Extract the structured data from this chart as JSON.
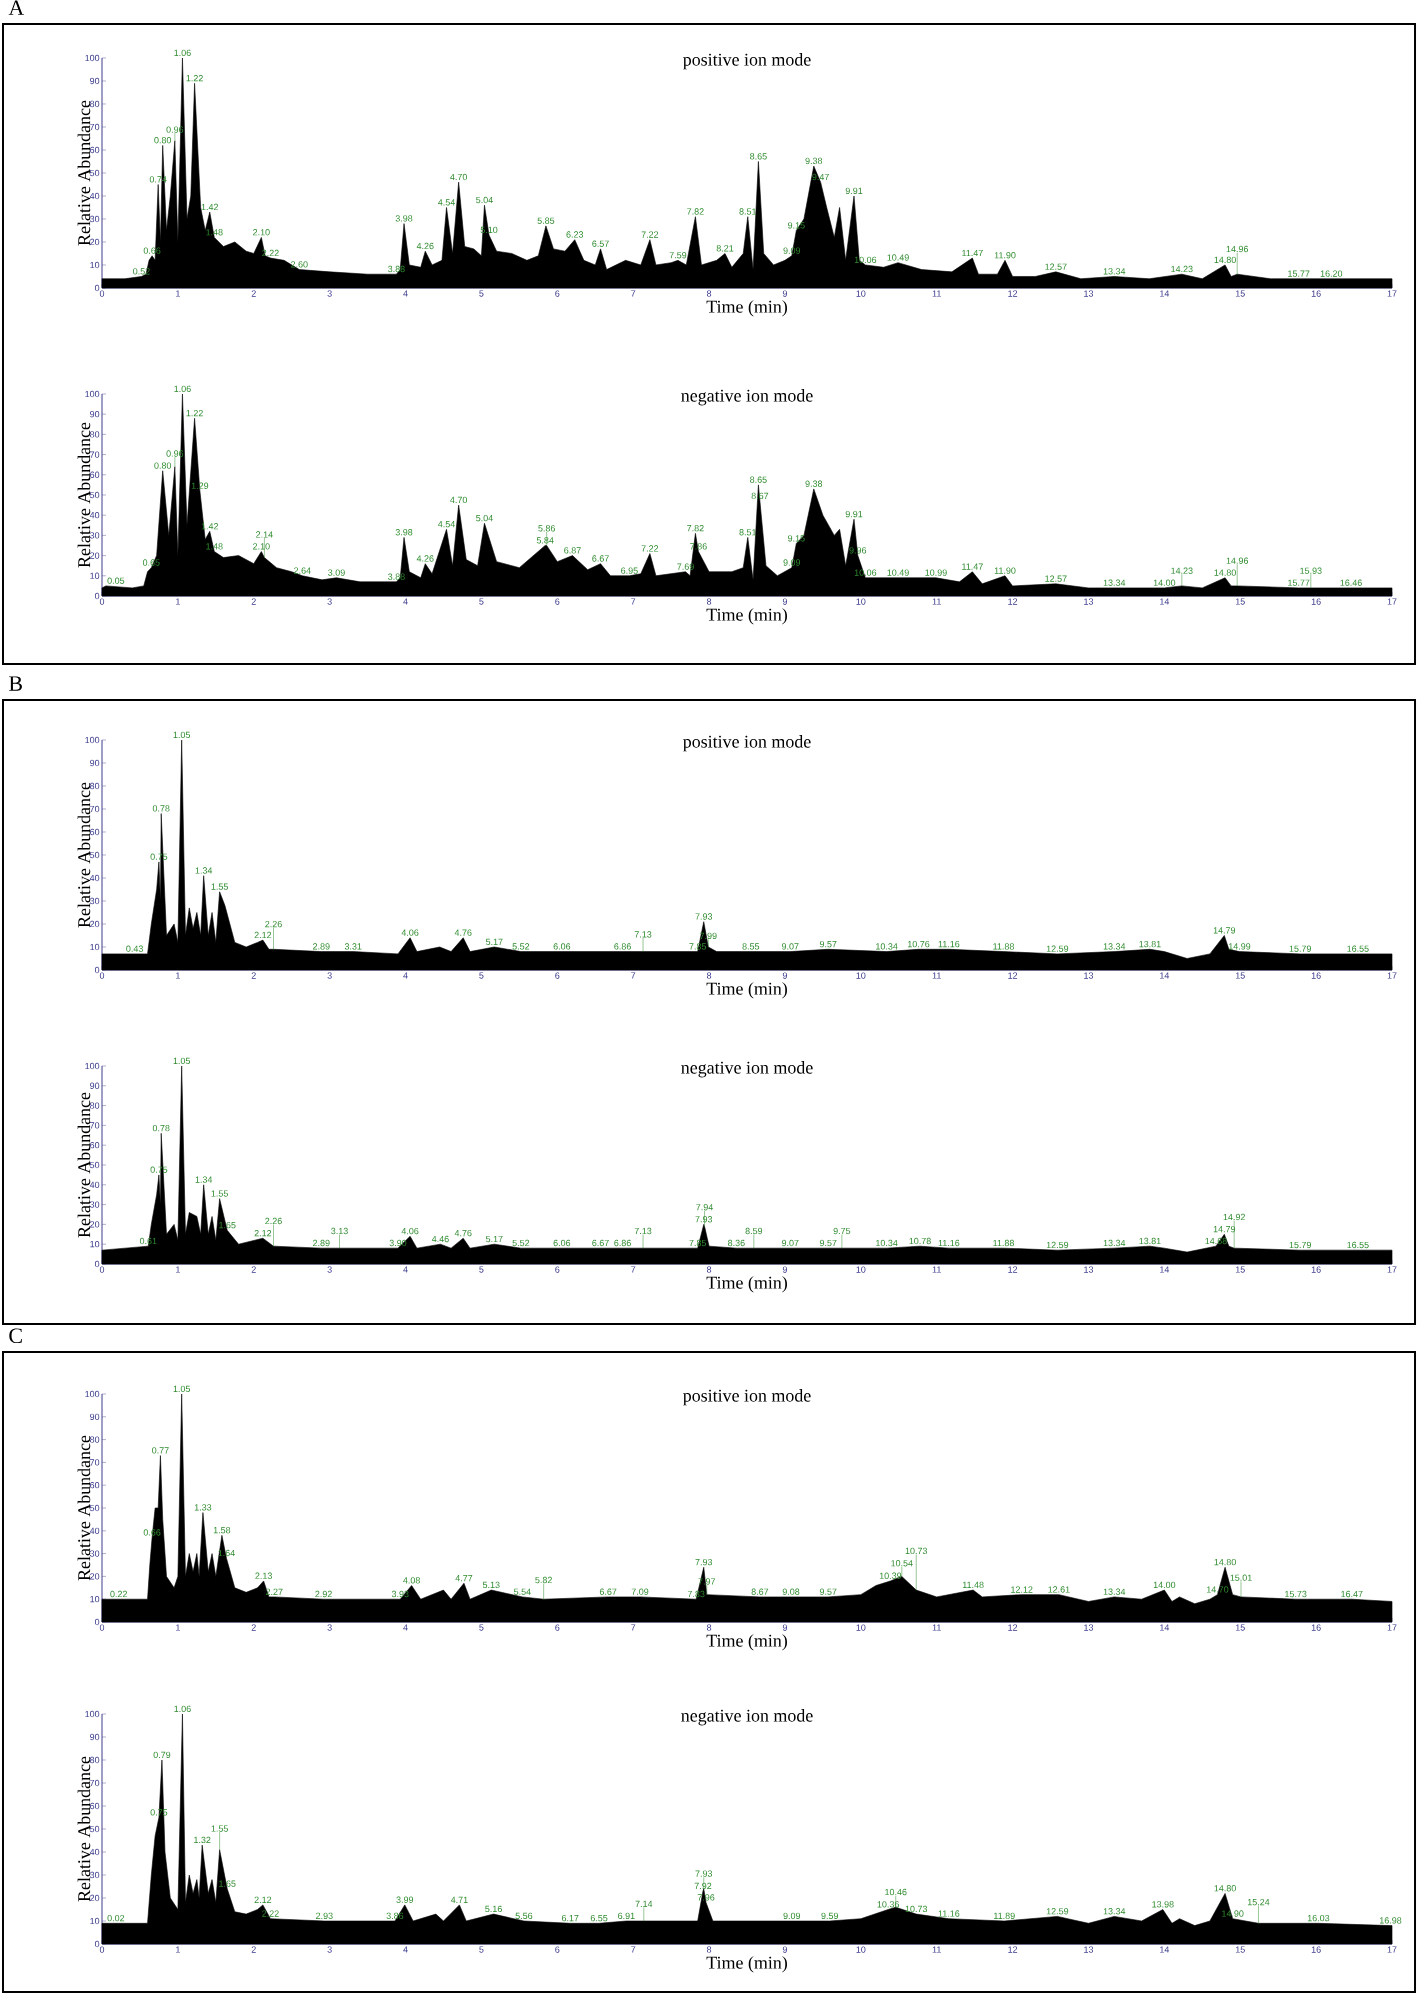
{
  "chart_data": [
    {
      "type": "area",
      "title": "positive ion mode",
      "xlabel": "Time (min)",
      "ylabel": "Relative Abundance",
      "color": "#000000",
      "xlim": [
        0,
        17
      ],
      "ylim": [
        0,
        100
      ],
      "xticks": [
        0,
        1,
        2,
        3,
        4,
        5,
        6,
        7,
        8,
        9,
        10,
        11,
        12,
        13,
        14,
        15,
        16,
        17
      ],
      "yticks": [
        0,
        10,
        20,
        30,
        40,
        50,
        60,
        70,
        80,
        90,
        100
      ],
      "x": [
        0,
        0.3,
        0.52,
        0.58,
        0.62,
        0.66,
        0.7,
        0.74,
        0.77,
        0.8,
        0.85,
        0.9,
        0.96,
        1.0,
        1.06,
        1.12,
        1.17,
        1.22,
        1.3,
        1.36,
        1.42,
        1.48,
        1.6,
        1.75,
        1.9,
        2.0,
        2.1,
        2.15,
        2.22,
        2.4,
        2.6,
        3.0,
        3.5,
        3.88,
        3.93,
        3.98,
        4.05,
        4.2,
        4.26,
        4.35,
        4.48,
        4.54,
        4.62,
        4.7,
        4.78,
        4.9,
        5.0,
        5.04,
        5.1,
        5.2,
        5.4,
        5.6,
        5.75,
        5.85,
        5.95,
        6.1,
        6.23,
        6.35,
        6.5,
        6.57,
        6.65,
        6.9,
        7.1,
        7.22,
        7.3,
        7.5,
        7.59,
        7.7,
        7.82,
        7.9,
        8.1,
        8.21,
        8.3,
        8.45,
        8.51,
        8.58,
        8.65,
        8.72,
        8.85,
        9.0,
        9.09,
        9.15,
        9.25,
        9.38,
        9.47,
        9.55,
        9.65,
        9.72,
        9.8,
        9.91,
        9.98,
        10.06,
        10.3,
        10.49,
        10.8,
        11.2,
        11.47,
        11.55,
        11.8,
        11.9,
        12.0,
        12.3,
        12.57,
        12.9,
        13.34,
        13.8,
        14.23,
        14.5,
        14.8,
        14.88,
        14.96,
        15.4,
        15.77,
        16.2,
        16.6,
        17
      ],
      "values": [
        4,
        4,
        5,
        6,
        12,
        14,
        12,
        45,
        20,
        62,
        25,
        40,
        64,
        20,
        100,
        30,
        40,
        89,
        35,
        25,
        33,
        22,
        18,
        20,
        16,
        15,
        22,
        14,
        13,
        12,
        8,
        7,
        6,
        6,
        8,
        28,
        10,
        9,
        16,
        10,
        12,
        35,
        15,
        46,
        18,
        17,
        14,
        36,
        23,
        16,
        15,
        12,
        14,
        27,
        17,
        16,
        21,
        12,
        10,
        17,
        8,
        12,
        10,
        21,
        10,
        11,
        12,
        10,
        31,
        10,
        12,
        15,
        9,
        15,
        31,
        8,
        55,
        15,
        10,
        12,
        14,
        25,
        30,
        53,
        46,
        35,
        22,
        35,
        12,
        40,
        12,
        10,
        9,
        11,
        8,
        7,
        13,
        6,
        6,
        12,
        5,
        5,
        7,
        4,
        5,
        4,
        6,
        4,
        10,
        5,
        6,
        4,
        4,
        4,
        4,
        4
      ],
      "annotations": [
        "A",
        {
          "text": "0.52",
          "x": 0.52,
          "y": 5
        },
        {
          "text": "0.66",
          "x": 0.66,
          "y": 14
        },
        {
          "text": "0.74",
          "x": 0.74,
          "y": 45
        },
        {
          "text": "0.80",
          "x": 0.8,
          "y": 62
        },
        {
          "text": "0.96",
          "x": 0.96,
          "y": 64
        },
        {
          "text": "1.06",
          "x": 1.06,
          "y": 100
        },
        {
          "text": "1.22",
          "x": 1.22,
          "y": 89
        },
        {
          "text": "1.42",
          "x": 1.42,
          "y": 33
        },
        {
          "text": "1.48",
          "x": 1.48,
          "y": 22
        },
        {
          "text": "2.10",
          "x": 2.1,
          "y": 22
        },
        {
          "text": "2.22",
          "x": 2.22,
          "y": 13
        },
        {
          "text": "2.60",
          "x": 2.6,
          "y": 8
        },
        {
          "text": "3.88",
          "x": 3.88,
          "y": 6
        },
        {
          "text": "3.98",
          "x": 3.98,
          "y": 28
        },
        {
          "text": "4.26",
          "x": 4.26,
          "y": 16
        },
        {
          "text": "4.54",
          "x": 4.54,
          "y": 35
        },
        {
          "text": "4.70",
          "x": 4.7,
          "y": 46
        },
        {
          "text": "5.04",
          "x": 5.04,
          "y": 36
        },
        {
          "text": "5.10",
          "x": 5.1,
          "y": 23
        },
        {
          "text": "5.85",
          "x": 5.85,
          "y": 27
        },
        {
          "text": "6.23",
          "x": 6.23,
          "y": 21
        },
        {
          "text": "6.57",
          "x": 6.57,
          "y": 17
        },
        {
          "text": "7.22",
          "x": 7.22,
          "y": 21
        },
        {
          "text": "7.59",
          "x": 7.59,
          "y": 12
        },
        {
          "text": "7.82",
          "x": 7.82,
          "y": 31
        },
        {
          "text": "8.21",
          "x": 8.21,
          "y": 15
        },
        {
          "text": "8.51",
          "x": 8.51,
          "y": 31
        },
        {
          "text": "8.65",
          "x": 8.65,
          "y": 55
        },
        {
          "text": "9.09",
          "x": 9.09,
          "y": 14
        },
        {
          "text": "9.15",
          "x": 9.15,
          "y": 25
        },
        {
          "text": "9.38",
          "x": 9.38,
          "y": 53
        },
        {
          "text": "9.47",
          "x": 9.47,
          "y": 46
        },
        {
          "text": "9.91",
          "x": 9.91,
          "y": 40
        },
        {
          "text": "10.06",
          "x": 10.06,
          "y": 10
        },
        {
          "text": "10.49",
          "x": 10.49,
          "y": 11
        },
        {
          "text": "11.47",
          "x": 11.47,
          "y": 13
        },
        {
          "text": "11.90",
          "x": 11.9,
          "y": 12
        },
        {
          "text": "12.57",
          "x": 12.57,
          "y": 7
        },
        {
          "text": "13.34",
          "x": 13.34,
          "y": 5
        },
        {
          "text": "14.23",
          "x": 14.23,
          "y": 6
        },
        {
          "text": "14.80",
          "x": 14.8,
          "y": 10
        },
        {
          "text": "14.96",
          "x": 14.96,
          "y": 6
        },
        {
          "text": "15.77",
          "x": 15.77,
          "y": 4
        },
        {
          "text": "16.20",
          "x": 16.2,
          "y": 4
        }
      ]
    },
    {
      "type": "area",
      "title": "negative ion mode",
      "xlabel": "Time (min)",
      "ylabel": "Relative Abundance",
      "color": "#000000",
      "xlim": [
        0,
        17
      ],
      "ylim": [
        0,
        100
      ],
      "xticks": [
        0,
        1,
        2,
        3,
        4,
        5,
        6,
        7,
        8,
        9,
        10,
        11,
        12,
        13,
        14,
        15,
        16,
        17
      ],
      "yticks": [
        0,
        10,
        20,
        30,
        40,
        50,
        60,
        70,
        80,
        90,
        100
      ],
      "x": [
        0,
        0.05,
        0.4,
        0.55,
        0.6,
        0.65,
        0.72,
        0.8,
        0.88,
        0.96,
        1.0,
        1.06,
        1.12,
        1.22,
        1.29,
        1.36,
        1.42,
        1.48,
        1.6,
        1.8,
        2.0,
        2.1,
        2.14,
        2.3,
        2.5,
        2.64,
        2.9,
        3.09,
        3.4,
        3.88,
        3.93,
        3.98,
        4.05,
        4.2,
        4.26,
        4.35,
        4.54,
        4.62,
        4.7,
        4.8,
        4.95,
        5.04,
        5.2,
        5.5,
        5.84,
        5.86,
        6.0,
        6.2,
        6.4,
        6.57,
        6.7,
        6.95,
        7.1,
        7.22,
        7.3,
        7.69,
        7.75,
        7.82,
        7.86,
        8.0,
        8.3,
        8.45,
        8.51,
        8.58,
        8.65,
        8.67,
        8.75,
        8.9,
        9.09,
        9.15,
        9.25,
        9.38,
        9.5,
        9.65,
        9.72,
        9.8,
        9.91,
        9.96,
        10.06,
        10.3,
        10.49,
        10.99,
        11.3,
        11.47,
        11.6,
        11.9,
        12.0,
        12.57,
        13.0,
        13.34,
        14.0,
        14.23,
        14.5,
        14.8,
        14.88,
        14.96,
        15.77,
        15.93,
        16.46,
        17
      ],
      "values": [
        4,
        5,
        4,
        5,
        12,
        14,
        20,
        62,
        30,
        64,
        20,
        100,
        35,
        88,
        52,
        28,
        32,
        22,
        19,
        20,
        16,
        22,
        19,
        14,
        12,
        10,
        8,
        9,
        7,
        7,
        9,
        29,
        12,
        9,
        16,
        11,
        33,
        15,
        45,
        18,
        15,
        36,
        17,
        14,
        25,
        25,
        17,
        20,
        13,
        16,
        10,
        10,
        11,
        21,
        10,
        12,
        10,
        31,
        22,
        12,
        12,
        14,
        29,
        8,
        55,
        47,
        15,
        10,
        14,
        26,
        30,
        53,
        40,
        30,
        33,
        15,
        38,
        20,
        9,
        9,
        9,
        9,
        7,
        12,
        6,
        10,
        5,
        6,
        4,
        4,
        4,
        5,
        4,
        9,
        5,
        5,
        4,
        4,
        4,
        4
      ],
      "annotations": [
        {
          "text": "0.05",
          "x": 0.05,
          "y": 5
        },
        {
          "text": "0.65",
          "x": 0.65,
          "y": 14
        },
        {
          "text": "0.80",
          "x": 0.8,
          "y": 62
        },
        {
          "text": "0.96",
          "x": 0.96,
          "y": 64
        },
        {
          "text": "1.06",
          "x": 1.06,
          "y": 100
        },
        {
          "text": "1.22",
          "x": 1.22,
          "y": 88
        },
        {
          "text": "1.29",
          "x": 1.29,
          "y": 52
        },
        {
          "text": "1.42",
          "x": 1.42,
          "y": 32
        },
        {
          "text": "1.48",
          "x": 1.48,
          "y": 22
        },
        {
          "text": "2.10",
          "x": 2.1,
          "y": 22
        },
        {
          "text": "2.14",
          "x": 2.14,
          "y": 19
        },
        {
          "text": "2.64",
          "x": 2.64,
          "y": 10
        },
        {
          "text": "3.09",
          "x": 3.09,
          "y": 9
        },
        {
          "text": "3.88",
          "x": 3.88,
          "y": 7
        },
        {
          "text": "3.98",
          "x": 3.98,
          "y": 29
        },
        {
          "text": "4.26",
          "x": 4.26,
          "y": 16
        },
        {
          "text": "4.54",
          "x": 4.54,
          "y": 33
        },
        {
          "text": "4.70",
          "x": 4.7,
          "y": 45
        },
        {
          "text": "5.04",
          "x": 5.04,
          "y": 36
        },
        {
          "text": "5.84",
          "x": 5.84,
          "y": 25
        },
        {
          "text": "5.86",
          "x": 5.86,
          "y": 25
        },
        {
          "text": "6.87",
          "x": 6.2,
          "y": 20
        },
        {
          "text": "6.67",
          "x": 6.57,
          "y": 16
        },
        {
          "text": "6.95",
          "x": 6.95,
          "y": 10
        },
        {
          "text": "7.22",
          "x": 7.22,
          "y": 21
        },
        {
          "text": "7.69",
          "x": 7.69,
          "y": 12
        },
        {
          "text": "7.82",
          "x": 7.82,
          "y": 31
        },
        {
          "text": "7.86",
          "x": 7.86,
          "y": 22
        },
        {
          "text": "8.51",
          "x": 8.51,
          "y": 29
        },
        {
          "text": "8.65",
          "x": 8.65,
          "y": 55
        },
        {
          "text": "8.67",
          "x": 8.67,
          "y": 47
        },
        {
          "text": "9.09",
          "x": 9.09,
          "y": 14
        },
        {
          "text": "9.15",
          "x": 9.15,
          "y": 26
        },
        {
          "text": "9.38",
          "x": 9.38,
          "y": 53
        },
        {
          "text": "9.91",
          "x": 9.91,
          "y": 38
        },
        {
          "text": "9.96",
          "x": 9.96,
          "y": 20
        },
        {
          "text": "10.06",
          "x": 10.06,
          "y": 9
        },
        {
          "text": "10.49",
          "x": 10.49,
          "y": 9
        },
        {
          "text": "10.99",
          "x": 10.99,
          "y": 9
        },
        {
          "text": "11.47",
          "x": 11.47,
          "y": 12
        },
        {
          "text": "11.90",
          "x": 11.9,
          "y": 10
        },
        {
          "text": "12.57",
          "x": 12.57,
          "y": 6
        },
        {
          "text": "13.34",
          "x": 13.34,
          "y": 4
        },
        {
          "text": "14.00",
          "x": 14.0,
          "y": 4
        },
        {
          "text": "14.23",
          "x": 14.23,
          "y": 5
        },
        {
          "text": "14.80",
          "x": 14.8,
          "y": 9
        },
        {
          "text": "14.96",
          "x": 14.96,
          "y": 5
        },
        {
          "text": "15.77",
          "x": 15.77,
          "y": 4
        },
        {
          "text": "15.93",
          "x": 15.93,
          "y": 4
        },
        {
          "text": "16.46",
          "x": 16.46,
          "y": 4
        }
      ]
    },
    {
      "type": "area",
      "title": "positive ion mode",
      "xlabel": "Time (min)",
      "ylabel": "Relative Abundance",
      "color": "#000000",
      "xlim": [
        0,
        17
      ],
      "ylim": [
        0,
        100
      ],
      "xticks": [
        0,
        1,
        2,
        3,
        4,
        5,
        6,
        7,
        8,
        9,
        10,
        11,
        12,
        13,
        14,
        15,
        16,
        17
      ],
      "yticks": [
        0,
        10,
        20,
        30,
        40,
        50,
        60,
        70,
        80,
        90,
        100
      ],
      "x": [
        0,
        0.43,
        0.6,
        0.65,
        0.72,
        0.75,
        0.77,
        0.78,
        0.85,
        0.95,
        1.0,
        1.05,
        1.1,
        1.15,
        1.2,
        1.25,
        1.3,
        1.34,
        1.4,
        1.45,
        1.5,
        1.55,
        1.62,
        1.75,
        1.9,
        2.05,
        2.12,
        2.2,
        2.26,
        2.89,
        3.31,
        3.9,
        4.06,
        4.15,
        4.45,
        4.6,
        4.76,
        4.85,
        5.17,
        5.52,
        6.06,
        6.86,
        7.13,
        7.85,
        7.93,
        7.99,
        8.1,
        8.55,
        9.07,
        9.57,
        10.34,
        10.76,
        11.16,
        11.88,
        12.59,
        13.34,
        13.81,
        14.0,
        14.3,
        14.6,
        14.79,
        14.85,
        14.99,
        15.79,
        16.55,
        17
      ],
      "values": [
        7,
        7,
        7,
        20,
        35,
        47,
        30,
        68,
        15,
        20,
        12,
        100,
        15,
        27,
        18,
        25,
        15,
        41,
        15,
        25,
        12,
        34,
        28,
        12,
        10,
        12,
        13,
        9,
        9,
        8,
        8,
        7,
        14,
        8,
        10,
        8,
        14,
        8,
        10,
        8,
        8,
        8,
        8,
        8,
        21,
        10,
        8,
        8,
        8,
        9,
        8,
        9,
        9,
        8,
        7,
        8,
        9,
        8,
        5,
        7,
        15,
        9,
        8,
        7,
        7,
        7
      ],
      "annotations": [
        "B",
        {
          "text": "0.43",
          "x": 0.43,
          "y": 7
        },
        {
          "text": "0.75",
          "x": 0.75,
          "y": 47
        },
        {
          "text": "0.78",
          "x": 0.78,
          "y": 68
        },
        {
          "text": "1.05",
          "x": 1.05,
          "y": 100
        },
        {
          "text": "1.34",
          "x": 1.34,
          "y": 41
        },
        {
          "text": "1.55",
          "x": 1.55,
          "y": 34
        },
        {
          "text": "2.12",
          "x": 2.12,
          "y": 13
        },
        {
          "text": "2.26",
          "x": 2.26,
          "y": 9
        },
        {
          "text": "2.89",
          "x": 2.89,
          "y": 8
        },
        {
          "text": "3.31",
          "x": 3.31,
          "y": 8
        },
        {
          "text": "4.06",
          "x": 4.06,
          "y": 14
        },
        {
          "text": "4.76",
          "x": 4.76,
          "y": 14
        },
        {
          "text": "5.17",
          "x": 5.17,
          "y": 10
        },
        {
          "text": "5.52",
          "x": 5.52,
          "y": 8
        },
        {
          "text": "6.06",
          "x": 6.06,
          "y": 8
        },
        {
          "text": "6.86",
          "x": 6.86,
          "y": 8
        },
        {
          "text": "7.13",
          "x": 7.13,
          "y": 8
        },
        {
          "text": "7.85",
          "x": 7.85,
          "y": 8
        },
        {
          "text": "7.93",
          "x": 7.93,
          "y": 21
        },
        {
          "text": "7.99",
          "x": 7.99,
          "y": 10
        },
        {
          "text": "8.55",
          "x": 8.55,
          "y": 8
        },
        {
          "text": "9.07",
          "x": 9.07,
          "y": 8
        },
        {
          "text": "9.57",
          "x": 9.57,
          "y": 9
        },
        {
          "text": "10.34",
          "x": 10.34,
          "y": 8
        },
        {
          "text": "10.76",
          "x": 10.76,
          "y": 9
        },
        {
          "text": "11.16",
          "x": 11.16,
          "y": 9
        },
        {
          "text": "11.88",
          "x": 11.88,
          "y": 8
        },
        {
          "text": "12.59",
          "x": 12.59,
          "y": 7
        },
        {
          "text": "13.34",
          "x": 13.34,
          "y": 8
        },
        {
          "text": "13.81",
          "x": 13.81,
          "y": 9
        },
        {
          "text": "14.79",
          "x": 14.79,
          "y": 15
        },
        {
          "text": "14.99",
          "x": 14.99,
          "y": 8
        },
        {
          "text": "15.79",
          "x": 15.79,
          "y": 7
        },
        {
          "text": "16.55",
          "x": 16.55,
          "y": 7
        }
      ]
    },
    {
      "type": "area",
      "title": "negative ion mode",
      "xlabel": "Time (min)",
      "ylabel": "Relative Abundance",
      "color": "#000000",
      "xlim": [
        0,
        17
      ],
      "ylim": [
        0,
        100
      ],
      "xticks": [
        0,
        1,
        2,
        3,
        4,
        5,
        6,
        7,
        8,
        9,
        10,
        11,
        12,
        13,
        14,
        15,
        16,
        17
      ],
      "yticks": [
        0,
        10,
        20,
        30,
        40,
        50,
        60,
        70,
        80,
        90,
        100
      ],
      "x": [
        0,
        0.61,
        0.65,
        0.72,
        0.75,
        0.77,
        0.78,
        0.85,
        0.95,
        1.0,
        1.05,
        1.1,
        1.15,
        1.25,
        1.3,
        1.34,
        1.4,
        1.45,
        1.5,
        1.55,
        1.65,
        1.8,
        2.12,
        2.26,
        2.89,
        3.13,
        3.9,
        4.06,
        4.15,
        4.46,
        4.6,
        4.76,
        4.85,
        5.17,
        5.52,
        6.06,
        6.57,
        6.86,
        7.13,
        7.85,
        7.93,
        7.94,
        8.0,
        8.36,
        8.59,
        9.07,
        9.57,
        9.75,
        10.34,
        10.78,
        11.16,
        11.88,
        12.59,
        13.34,
        13.81,
        14.0,
        14.3,
        14.68,
        14.79,
        14.85,
        14.92,
        15.79,
        16.55,
        17
      ],
      "values": [
        7,
        9,
        20,
        35,
        45,
        30,
        66,
        15,
        20,
        12,
        100,
        15,
        26,
        24,
        15,
        40,
        15,
        24,
        12,
        33,
        17,
        10,
        13,
        9,
        8,
        8,
        8,
        14,
        8,
        10,
        8,
        13,
        8,
        10,
        8,
        8,
        8,
        8,
        8,
        8,
        20,
        19,
        9,
        8,
        8,
        8,
        8,
        8,
        8,
        9,
        8,
        8,
        7,
        8,
        9,
        8,
        6,
        9,
        15,
        9,
        8,
        7,
        7,
        7
      ],
      "annotations": [
        {
          "text": "0.61",
          "x": 0.61,
          "y": 9
        },
        {
          "text": "0.75",
          "x": 0.75,
          "y": 45
        },
        {
          "text": "0.78",
          "x": 0.78,
          "y": 66
        },
        {
          "text": "1.05",
          "x": 1.05,
          "y": 100
        },
        {
          "text": "1.34",
          "x": 1.34,
          "y": 40
        },
        {
          "text": "1.55",
          "x": 1.55,
          "y": 33
        },
        {
          "text": "1.65",
          "x": 1.65,
          "y": 17
        },
        {
          "text": "2.12",
          "x": 2.12,
          "y": 13
        },
        {
          "text": "2.26",
          "x": 2.26,
          "y": 9
        },
        {
          "text": "2.89",
          "x": 2.89,
          "y": 8
        },
        {
          "text": "3.13",
          "x": 3.13,
          "y": 8
        },
        {
          "text": "3.90",
          "x": 3.9,
          "y": 8
        },
        {
          "text": "4.06",
          "x": 4.06,
          "y": 14
        },
        {
          "text": "4.46",
          "x": 4.46,
          "y": 10
        },
        {
          "text": "4.76",
          "x": 4.76,
          "y": 13
        },
        {
          "text": "5.17",
          "x": 5.17,
          "y": 10
        },
        {
          "text": "5.52",
          "x": 5.52,
          "y": 8
        },
        {
          "text": "6.06",
          "x": 6.06,
          "y": 8
        },
        {
          "text": "6.67",
          "x": 6.57,
          "y": 8
        },
        {
          "text": "6.86",
          "x": 6.86,
          "y": 8
        },
        {
          "text": "7.13",
          "x": 7.13,
          "y": 8
        },
        {
          "text": "7.85",
          "x": 7.85,
          "y": 8
        },
        {
          "text": "7.93",
          "x": 7.93,
          "y": 20
        },
        {
          "text": "7.94",
          "x": 7.94,
          "y": 19
        },
        {
          "text": "8.36",
          "x": 8.36,
          "y": 8
        },
        {
          "text": "8.59",
          "x": 8.59,
          "y": 8
        },
        {
          "text": "9.07",
          "x": 9.07,
          "y": 8
        },
        {
          "text": "9.57",
          "x": 9.57,
          "y": 8
        },
        {
          "text": "9.75",
          "x": 9.75,
          "y": 8
        },
        {
          "text": "10.34",
          "x": 10.34,
          "y": 8
        },
        {
          "text": "10.78",
          "x": 10.78,
          "y": 9
        },
        {
          "text": "11.16",
          "x": 11.16,
          "y": 8
        },
        {
          "text": "11.88",
          "x": 11.88,
          "y": 8
        },
        {
          "text": "12.59",
          "x": 12.59,
          "y": 7
        },
        {
          "text": "13.34",
          "x": 13.34,
          "y": 8
        },
        {
          "text": "13.81",
          "x": 13.81,
          "y": 9
        },
        {
          "text": "14.68",
          "x": 14.68,
          "y": 9
        },
        {
          "text": "14.79",
          "x": 14.79,
          "y": 15
        },
        {
          "text": "14.92",
          "x": 14.92,
          "y": 8
        },
        {
          "text": "15.79",
          "x": 15.79,
          "y": 7
        },
        {
          "text": "16.55",
          "x": 16.55,
          "y": 7
        }
      ]
    },
    {
      "type": "area",
      "title": "positive ion mode",
      "xlabel": "Time (min)",
      "ylabel": "Relative Abundance",
      "color": "#000000",
      "xlim": [
        0,
        17
      ],
      "ylim": [
        0,
        100
      ],
      "xticks": [
        0,
        1,
        2,
        3,
        4,
        5,
        6,
        7,
        8,
        9,
        10,
        11,
        12,
        13,
        14,
        15,
        16,
        17
      ],
      "yticks": [
        0,
        10,
        20,
        30,
        40,
        50,
        60,
        70,
        80,
        90,
        100
      ],
      "x": [
        0,
        0.22,
        0.6,
        0.63,
        0.66,
        0.7,
        0.74,
        0.77,
        0.8,
        0.85,
        0.95,
        1.0,
        1.05,
        1.1,
        1.15,
        1.2,
        1.25,
        1.28,
        1.33,
        1.4,
        1.45,
        1.5,
        1.58,
        1.64,
        1.75,
        1.9,
        2.05,
        2.13,
        2.2,
        2.27,
        2.92,
        3.93,
        4.08,
        4.2,
        4.5,
        4.6,
        4.77,
        4.85,
        5.13,
        5.54,
        5.82,
        6.67,
        7.09,
        7.83,
        7.93,
        7.97,
        8.67,
        9.08,
        9.57,
        10.0,
        10.2,
        10.39,
        10.54,
        10.73,
        11.0,
        11.48,
        11.6,
        12.12,
        12.61,
        13.0,
        13.34,
        13.7,
        14.0,
        14.1,
        14.2,
        14.4,
        14.6,
        14.7,
        14.8,
        14.9,
        15.01,
        15.73,
        16.47,
        17
      ],
      "values": [
        10,
        10,
        10,
        25,
        37,
        50,
        50,
        73,
        45,
        20,
        15,
        20,
        100,
        20,
        30,
        22,
        30,
        20,
        48,
        22,
        30,
        20,
        38,
        28,
        15,
        13,
        15,
        18,
        11,
        11,
        10,
        10,
        16,
        10,
        14,
        10,
        17,
        10,
        14,
        11,
        10,
        11,
        11,
        10,
        24,
        12,
        11,
        11,
        11,
        12,
        16,
        18,
        20,
        14,
        11,
        14,
        11,
        12,
        12,
        9,
        11,
        10,
        14,
        9,
        11,
        8,
        10,
        12,
        24,
        12,
        11,
        10,
        10,
        9
      ],
      "annotations": [
        "C",
        {
          "text": "0.22",
          "x": 0.22,
          "y": 10
        },
        {
          "text": "0.66",
          "x": 0.66,
          "y": 37
        },
        {
          "text": "0.77",
          "x": 0.77,
          "y": 73
        },
        {
          "text": "1.05",
          "x": 1.05,
          "y": 100
        },
        {
          "text": "1.33",
          "x": 1.33,
          "y": 48
        },
        {
          "text": "1.58",
          "x": 1.58,
          "y": 38
        },
        {
          "text": "1.64",
          "x": 1.64,
          "y": 28
        },
        {
          "text": "2.13",
          "x": 2.13,
          "y": 18
        },
        {
          "text": "2.27",
          "x": 2.27,
          "y": 11
        },
        {
          "text": "2.92",
          "x": 2.92,
          "y": 10
        },
        {
          "text": "3.93",
          "x": 3.93,
          "y": 10
        },
        {
          "text": "4.08",
          "x": 4.08,
          "y": 16
        },
        {
          "text": "4.77",
          "x": 4.77,
          "y": 17
        },
        {
          "text": "5.13",
          "x": 5.13,
          "y": 14
        },
        {
          "text": "5.54",
          "x": 5.54,
          "y": 11
        },
        {
          "text": "5.82",
          "x": 5.82,
          "y": 10
        },
        {
          "text": "6.67",
          "x": 6.67,
          "y": 11
        },
        {
          "text": "7.09",
          "x": 7.09,
          "y": 11
        },
        {
          "text": "7.83",
          "x": 7.83,
          "y": 10
        },
        {
          "text": "7.93",
          "x": 7.93,
          "y": 24
        },
        {
          "text": "7.97",
          "x": 7.97,
          "y": 12
        },
        {
          "text": "8.67",
          "x": 8.67,
          "y": 11
        },
        {
          "text": "9.08",
          "x": 9.08,
          "y": 11
        },
        {
          "text": "9.57",
          "x": 9.57,
          "y": 11
        },
        {
          "text": "10.39",
          "x": 10.39,
          "y": 18
        },
        {
          "text": "10.54",
          "x": 10.54,
          "y": 20
        },
        {
          "text": "10.73",
          "x": 10.73,
          "y": 14
        },
        {
          "text": "11.48",
          "x": 11.48,
          "y": 14
        },
        {
          "text": "12.12",
          "x": 12.12,
          "y": 12
        },
        {
          "text": "12.61",
          "x": 12.61,
          "y": 12
        },
        {
          "text": "13.34",
          "x": 13.34,
          "y": 11
        },
        {
          "text": "14.00",
          "x": 14.0,
          "y": 14
        },
        {
          "text": "14.70",
          "x": 14.7,
          "y": 12
        },
        {
          "text": "14.80",
          "x": 14.8,
          "y": 24
        },
        {
          "text": "15.01",
          "x": 15.01,
          "y": 11
        },
        {
          "text": "15.73",
          "x": 15.73,
          "y": 10
        },
        {
          "text": "16.47",
          "x": 16.47,
          "y": 10
        }
      ]
    },
    {
      "type": "area",
      "title": "negative ion mode",
      "xlabel": "Time (min)",
      "ylabel": "Relative Abundance",
      "color": "#000000",
      "xlim": [
        0,
        17
      ],
      "ylim": [
        0,
        100
      ],
      "xticks": [
        0,
        1,
        2,
        3,
        4,
        5,
        6,
        7,
        8,
        9,
        10,
        11,
        12,
        13,
        14,
        15,
        16,
        17
      ],
      "yticks": [
        0,
        10,
        20,
        30,
        40,
        50,
        60,
        70,
        80,
        90,
        100
      ],
      "x": [
        0,
        0.02,
        0.6,
        0.65,
        0.7,
        0.75,
        0.79,
        0.83,
        0.9,
        1.0,
        1.06,
        1.1,
        1.15,
        1.2,
        1.25,
        1.28,
        1.32,
        1.4,
        1.45,
        1.5,
        1.55,
        1.65,
        1.75,
        1.9,
        2.05,
        2.12,
        2.22,
        2.93,
        3.86,
        3.99,
        4.1,
        4.4,
        4.5,
        4.71,
        4.8,
        5.16,
        5.56,
        6.17,
        6.55,
        6.91,
        7.14,
        7.85,
        7.92,
        7.93,
        7.96,
        8.05,
        9.09,
        9.59,
        10.0,
        10.36,
        10.46,
        10.73,
        11.16,
        11.89,
        12.59,
        13.0,
        13.34,
        13.7,
        13.98,
        14.1,
        14.2,
        14.4,
        14.6,
        14.8,
        14.9,
        15.24,
        16.03,
        16.98,
        17
      ],
      "values": [
        9,
        9,
        9,
        30,
        47,
        55,
        80,
        40,
        20,
        15,
        100,
        18,
        30,
        22,
        28,
        20,
        43,
        22,
        28,
        18,
        41,
        24,
        14,
        13,
        15,
        17,
        11,
        10,
        10,
        17,
        10,
        13,
        10,
        17,
        10,
        13,
        10,
        9,
        9,
        10,
        10,
        10,
        23,
        24,
        18,
        10,
        10,
        10,
        11,
        15,
        16,
        13,
        11,
        10,
        12,
        9,
        12,
        10,
        15,
        9,
        11,
        8,
        10,
        22,
        11,
        9,
        9,
        8,
        8
      ],
      "annotations": [
        {
          "text": "0.02",
          "x": 0.02,
          "y": 9
        },
        {
          "text": "0.75",
          "x": 0.75,
          "y": 55
        },
        {
          "text": "0.79",
          "x": 0.79,
          "y": 80
        },
        {
          "text": "1.06",
          "x": 1.06,
          "y": 100
        },
        {
          "text": "1.32",
          "x": 1.32,
          "y": 43
        },
        {
          "text": "1.55",
          "x": 1.55,
          "y": 41
        },
        {
          "text": "1.65",
          "x": 1.65,
          "y": 24
        },
        {
          "text": "2.12",
          "x": 2.12,
          "y": 17
        },
        {
          "text": "2.22",
          "x": 2.22,
          "y": 11
        },
        {
          "text": "2.93",
          "x": 2.93,
          "y": 10
        },
        {
          "text": "3.86",
          "x": 3.86,
          "y": 10
        },
        {
          "text": "3.99",
          "x": 3.99,
          "y": 17
        },
        {
          "text": "4.71",
          "x": 4.71,
          "y": 17
        },
        {
          "text": "5.16",
          "x": 5.16,
          "y": 13
        },
        {
          "text": "5.56",
          "x": 5.56,
          "y": 10
        },
        {
          "text": "6.17",
          "x": 6.17,
          "y": 9
        },
        {
          "text": "6.55",
          "x": 6.55,
          "y": 9
        },
        {
          "text": "6.91",
          "x": 6.91,
          "y": 10
        },
        {
          "text": "7.14",
          "x": 7.14,
          "y": 10
        },
        {
          "text": "7.92",
          "x": 7.92,
          "y": 23
        },
        {
          "text": "7.93",
          "x": 7.93,
          "y": 24
        },
        {
          "text": "7.96",
          "x": 7.96,
          "y": 18
        },
        {
          "text": "9.09",
          "x": 9.09,
          "y": 10
        },
        {
          "text": "9.59",
          "x": 9.59,
          "y": 10
        },
        {
          "text": "10.36",
          "x": 10.36,
          "y": 15
        },
        {
          "text": "10.46",
          "x": 10.46,
          "y": 16
        },
        {
          "text": "10.73",
          "x": 10.73,
          "y": 13
        },
        {
          "text": "11.16",
          "x": 11.16,
          "y": 11
        },
        {
          "text": "11.89",
          "x": 11.89,
          "y": 10
        },
        {
          "text": "12.59",
          "x": 12.59,
          "y": 12
        },
        {
          "text": "13.34",
          "x": 13.34,
          "y": 12
        },
        {
          "text": "13.98",
          "x": 13.98,
          "y": 15
        },
        {
          "text": "14.80",
          "x": 14.8,
          "y": 22
        },
        {
          "text": "14.90",
          "x": 14.9,
          "y": 11
        },
        {
          "text": "15.24",
          "x": 15.24,
          "y": 9
        },
        {
          "text": "16.03",
          "x": 16.03,
          "y": 9
        },
        {
          "text": "16.98",
          "x": 16.98,
          "y": 8
        }
      ]
    }
  ]
}
